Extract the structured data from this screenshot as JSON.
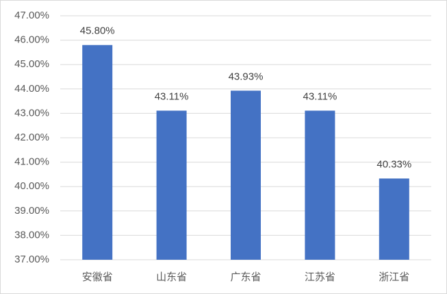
{
  "chart_data": {
    "type": "bar",
    "categories": [
      "安徽省",
      "山东省",
      "广东省",
      "江苏省",
      "浙江省"
    ],
    "values": [
      45.8,
      43.11,
      43.93,
      43.11,
      40.33
    ],
    "value_labels": [
      "45.80%",
      "43.11%",
      "43.93%",
      "43.11%",
      "40.33%"
    ],
    "color": "#4472c4",
    "ylim": [
      37,
      47
    ],
    "yticks": [
      {
        "value": 37,
        "label": "37.00%"
      },
      {
        "value": 38,
        "label": "38.00%"
      },
      {
        "value": 39,
        "label": "39.00%"
      },
      {
        "value": 40,
        "label": "40.00%"
      },
      {
        "value": 41,
        "label": "41.00%"
      },
      {
        "value": 42,
        "label": "42.00%"
      },
      {
        "value": 43,
        "label": "43.00%"
      },
      {
        "value": 44,
        "label": "44.00%"
      },
      {
        "value": 45,
        "label": "45.00%"
      },
      {
        "value": 46,
        "label": "46.00%"
      },
      {
        "value": 47,
        "label": "47.00%"
      }
    ],
    "grid": true
  }
}
